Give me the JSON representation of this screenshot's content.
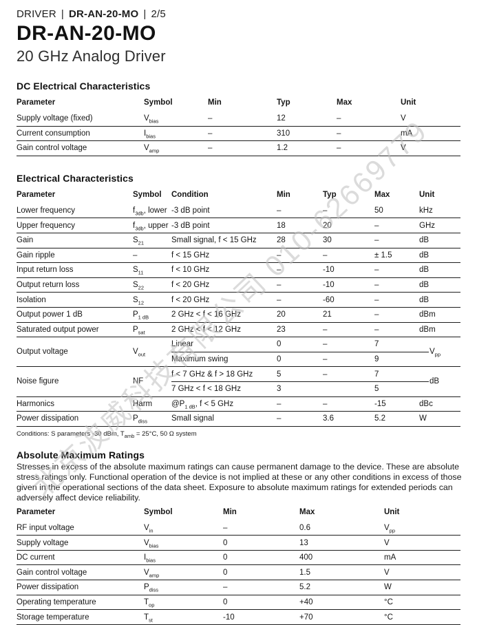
{
  "header": {
    "eyebrow": {
      "category": "DRIVER",
      "model": "DR-AN-20-MO",
      "page": "2/5",
      "separator": "|"
    },
    "title": "DR-AN-20-MO",
    "subtitle": "20 GHz Analog Driver"
  },
  "dc_section": {
    "heading": "DC Electrical Characteristics",
    "columns": [
      "Parameter",
      "Symbol",
      "Min",
      "Typ",
      "Max",
      "Unit"
    ],
    "rows": [
      {
        "param": "Supply voltage (fixed)",
        "symbol": [
          {
            "t": "V"
          },
          {
            "s": "bias"
          }
        ],
        "min": "–",
        "typ": "12",
        "max": "–",
        "unit": "V"
      },
      {
        "param": "Current consumption",
        "symbol": [
          {
            "t": "I"
          },
          {
            "s": "bias"
          }
        ],
        "min": "–",
        "typ": "310",
        "max": "–",
        "unit": "mA"
      },
      {
        "param": "Gain control voltage",
        "symbol": [
          {
            "t": "V"
          },
          {
            "s": "amp"
          }
        ],
        "min": "–",
        "typ": "1.2",
        "max": "–",
        "unit": "V"
      }
    ]
  },
  "ec_section": {
    "heading": "Electrical Characteristics",
    "columns": [
      "Parameter",
      "Symbol",
      "Condition",
      "Min",
      "Typ",
      "Max",
      "Unit"
    ],
    "rows": [
      {
        "param": "Lower frequency",
        "symbol": [
          {
            "t": "f"
          },
          {
            "s": "3db"
          },
          {
            "t": ", lower"
          }
        ],
        "condition": "-3 dB point",
        "min": "–",
        "typ": "–",
        "max": "50",
        "unit": "kHz"
      },
      {
        "param": "Upper frequency",
        "symbol": [
          {
            "t": "f"
          },
          {
            "s": "3db"
          },
          {
            "t": ", upper"
          }
        ],
        "condition": "-3 dB point",
        "min": "18",
        "typ": "20",
        "max": "–",
        "unit": "GHz"
      },
      {
        "param": "Gain",
        "symbol": [
          {
            "t": "S"
          },
          {
            "s": "21"
          }
        ],
        "condition": "Small signal, f < 15 GHz",
        "min": "28",
        "typ": "30",
        "max": "–",
        "unit": "dB"
      },
      {
        "param": "Gain ripple",
        "symbol": "–",
        "condition": "f < 15 GHz",
        "min": "–",
        "typ": "–",
        "max": "± 1.5",
        "unit": "dB"
      },
      {
        "param": "Input return loss",
        "symbol": [
          {
            "t": "S"
          },
          {
            "s": "11"
          }
        ],
        "condition": "f < 10 GHz",
        "min": "–",
        "typ": "-10",
        "max": "–",
        "unit": "dB"
      },
      {
        "param": "Output return loss",
        "symbol": [
          {
            "t": "S"
          },
          {
            "s": "22"
          }
        ],
        "condition": "f < 20 GHz",
        "min": "–",
        "typ": "-10",
        "max": "–",
        "unit": "dB"
      },
      {
        "param": "Isolation",
        "symbol": [
          {
            "t": "S"
          },
          {
            "s": "12"
          }
        ],
        "condition": "f < 20 GHz",
        "min": "–",
        "typ": "-60",
        "max": "–",
        "unit": "dB"
      },
      {
        "param": "Output power 1 dB",
        "symbol": [
          {
            "t": "P"
          },
          {
            "s": "1 dB"
          }
        ],
        "condition": "2 GHz < f < 16 GHz",
        "min": "20",
        "typ": "21",
        "max": "–",
        "unit": "dBm"
      },
      {
        "param": "Saturated output power",
        "symbol": [
          {
            "t": "P"
          },
          {
            "s": "sat"
          }
        ],
        "condition": "2 GHz < f < 12 GHz",
        "min": "23",
        "typ": "–",
        "max": "–",
        "unit": "dBm"
      },
      {
        "param": "Output voltage",
        "symbol": [
          {
            "t": "V"
          },
          {
            "s": "out"
          }
        ],
        "unit": [
          {
            "t": "V"
          },
          {
            "s": "pp"
          }
        ],
        "subrows": [
          {
            "condition": "Linear",
            "min": "0",
            "typ": "–",
            "max": "7"
          },
          {
            "condition": "Maximum swing",
            "min": "0",
            "typ": "–",
            "max": "9"
          }
        ]
      },
      {
        "param": "Noise figure",
        "symbol": "NF",
        "unit": "dB",
        "subrows": [
          {
            "condition": "f < 7 GHz & f > 18 GHz",
            "min": "5",
            "typ": "–",
            "max": "7"
          },
          {
            "condition": "7 GHz < f < 18 GHz",
            "min": "3",
            "typ": "",
            "max": "5"
          }
        ]
      },
      {
        "param": "Harmonics",
        "symbol": "Harm",
        "condition": [
          {
            "t": "@P"
          },
          {
            "s": "1 dB"
          },
          {
            "t": ", f < 5 GHz"
          }
        ],
        "min": "–",
        "typ": "–",
        "max": "-15",
        "unit": "dBc"
      },
      {
        "param": "Power dissipation",
        "symbol": [
          {
            "t": "P"
          },
          {
            "s": "diss"
          }
        ],
        "condition": "Small signal",
        "min": "–",
        "typ": "3.6",
        "max": "5.2",
        "unit": "W"
      }
    ],
    "conditions_note": [
      {
        "t": "Conditions: S parameters -30 dBm, T"
      },
      {
        "s": "amb"
      },
      {
        "t": " = 25°C, 50 Ω system"
      }
    ]
  },
  "amr_section": {
    "heading": "Absolute Maximum Ratings",
    "paragraph": "Stresses in excess of the absolute maximum ratings can cause permanent damage to the device. These are absolute stress ratings only. Functional operation of the device is not implied at these or any other conditions in excess of those given in the operational sections of the data sheet. Exposure to absolute maximum ratings for extended periods can adversely affect device reliability.",
    "columns": [
      "Parameter",
      "Symbol",
      "Min",
      "Max",
      "Unit"
    ],
    "rows": [
      {
        "param": "RF input voltage",
        "symbol": [
          {
            "t": "V"
          },
          {
            "s": "in"
          }
        ],
        "min": "–",
        "max": "0.6",
        "unit": [
          {
            "t": "V"
          },
          {
            "s": "pp"
          }
        ]
      },
      {
        "param": "Supply voltage",
        "symbol": [
          {
            "t": "V"
          },
          {
            "s": "bias"
          }
        ],
        "min": "0",
        "max": "13",
        "unit": "V"
      },
      {
        "param": "DC current",
        "symbol": [
          {
            "t": "I"
          },
          {
            "s": "bias"
          }
        ],
        "min": "0",
        "max": "400",
        "unit": "mA"
      },
      {
        "param": "Gain control voltage",
        "symbol": [
          {
            "t": "V"
          },
          {
            "s": "amp"
          }
        ],
        "min": "0",
        "max": "1.5",
        "unit": "V"
      },
      {
        "param": "Power dissipation",
        "symbol": [
          {
            "t": "P"
          },
          {
            "s": "diss"
          }
        ],
        "min": "–",
        "max": "5.2",
        "unit": "W"
      },
      {
        "param": "Operating temperature",
        "symbol": [
          {
            "t": "T"
          },
          {
            "s": "op"
          }
        ],
        "min": "0",
        "max": "+40",
        "unit": "°C"
      },
      {
        "param": "Storage temperature",
        "symbol": [
          {
            "t": "T"
          },
          {
            "s": "st"
          }
        ],
        "min": "-10",
        "max": "+70",
        "unit": "°C"
      }
    ]
  },
  "watermark": {
    "text": "北京波威科技有限公司 010-62669779",
    "color": "#bfbfbf"
  }
}
